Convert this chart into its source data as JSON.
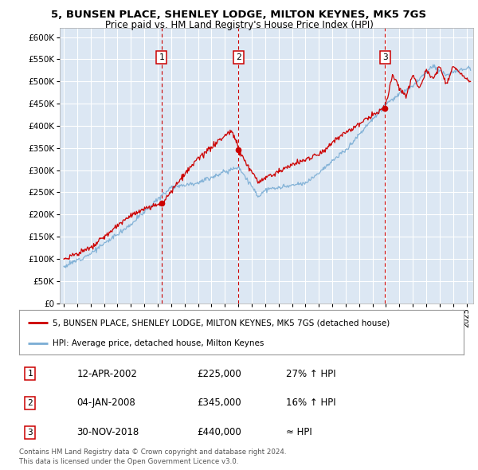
{
  "title_line1": "5, BUNSEN PLACE, SHENLEY LODGE, MILTON KEYNES, MK5 7GS",
  "title_line2": "Price paid vs. HM Land Registry's House Price Index (HPI)",
  "ytick_values": [
    0,
    50000,
    100000,
    150000,
    200000,
    250000,
    300000,
    350000,
    400000,
    450000,
    500000,
    550000,
    600000
  ],
  "ytick_labels": [
    "£0",
    "£50K",
    "£100K",
    "£150K",
    "£200K",
    "£250K",
    "£300K",
    "£350K",
    "£400K",
    "£450K",
    "£500K",
    "£550K",
    "£600K"
  ],
  "xlim_start": 1994.7,
  "xlim_end": 2025.5,
  "ylim_min": 0,
  "ylim_max": 620000,
  "bg_color": "#dce7f3",
  "grid_color": "#ffffff",
  "sale_color": "#cc0000",
  "hpi_color": "#7aadd4",
  "sale_label": "5, BUNSEN PLACE, SHENLEY LODGE, MILTON KEYNES, MK5 7GS (detached house)",
  "hpi_label": "HPI: Average price, detached house, Milton Keynes",
  "transactions": [
    {
      "num": 1,
      "date_x": 2002.28,
      "price": 225000,
      "label": "12-APR-2002",
      "price_str": "£225,000",
      "hpi_str": "27% ↑ HPI"
    },
    {
      "num": 2,
      "date_x": 2008.01,
      "price": 345000,
      "label": "04-JAN-2008",
      "price_str": "£345,000",
      "hpi_str": "16% ↑ HPI"
    },
    {
      "num": 3,
      "date_x": 2018.92,
      "price": 440000,
      "label": "30-NOV-2018",
      "price_str": "£440,000",
      "hpi_str": "≈ HPI"
    }
  ],
  "footer_line1": "Contains HM Land Registry data © Crown copyright and database right 2024.",
  "footer_line2": "This data is licensed under the Open Government Licence v3.0.",
  "xtick_years": [
    1995,
    1996,
    1997,
    1998,
    1999,
    2000,
    2001,
    2002,
    2003,
    2004,
    2005,
    2006,
    2007,
    2008,
    2009,
    2010,
    2011,
    2012,
    2013,
    2014,
    2015,
    2016,
    2017,
    2018,
    2019,
    2020,
    2021,
    2022,
    2023,
    2024,
    2025
  ]
}
